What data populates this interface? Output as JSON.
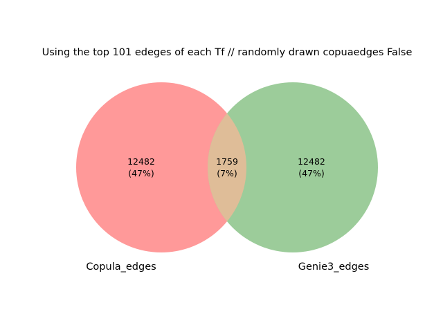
{
  "title": "Using the top 101 edeges of each Tf // randomly drawn copuaedges False",
  "sets": {
    "left": {
      "label": "Copula_edges",
      "color": "#ff9999"
    },
    "right": {
      "label": "Genie3_edges",
      "color": "#9ccc9a"
    },
    "overlap_color": "#dfbd98"
  },
  "regions": {
    "left_only": {
      "count": "12482",
      "percent": "(47%)"
    },
    "overlap": {
      "count": "1759",
      "percent": "(7%)"
    },
    "right_only": {
      "count": "12482",
      "percent": "(47%)"
    }
  }
}
